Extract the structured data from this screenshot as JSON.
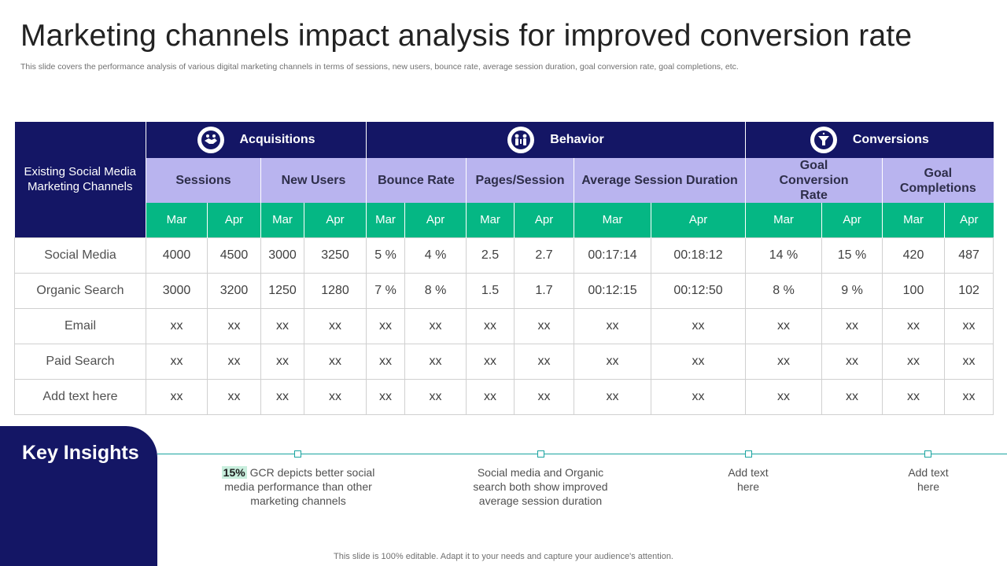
{
  "page": {
    "title": "Marketing channels impact analysis for improved conversion rate",
    "subtitle": "This slide covers the performance analysis of various digital marketing channels in terms of sessions, new users, bounce rate, average session duration, goal conversion rate, goal completions, etc."
  },
  "table": {
    "corner_label": "Existing Social Media Marketing Channels",
    "groups": [
      {
        "label": "Acquisitions",
        "icon": "handshake-icon"
      },
      {
        "label": "Behavior",
        "icon": "people-icon"
      },
      {
        "label": "Conversions",
        "icon": "funnel-icon"
      }
    ],
    "metrics": [
      "Sessions",
      "New Users",
      "Bounce Rate",
      "Pages/Session",
      "Average Session Duration",
      "Goal Conversion Rate",
      "Goal Completions"
    ],
    "months": [
      "Mar",
      "Apr"
    ],
    "rows": [
      {
        "label": "Social Media",
        "cells": [
          "4000",
          "4500",
          "3000",
          "3250",
          "5 %",
          "4 %",
          "2.5",
          "2.7",
          "00:17:14",
          "00:18:12",
          "14 %",
          "15 %",
          "420",
          "487"
        ]
      },
      {
        "label": "Organic Search",
        "cells": [
          "3000",
          "3200",
          "1250",
          "1280",
          "7 %",
          "8 %",
          "1.5",
          "1.7",
          "00:12:15",
          "00:12:50",
          "8 %",
          "9 %",
          "100",
          "102"
        ]
      },
      {
        "label": "Email",
        "cells": [
          "xx",
          "xx",
          "xx",
          "xx",
          "xx",
          "xx",
          "xx",
          "xx",
          "xx",
          "xx",
          "xx",
          "xx",
          "xx",
          "xx"
        ]
      },
      {
        "label": "Paid Search",
        "cells": [
          "xx",
          "xx",
          "xx",
          "xx",
          "xx",
          "xx",
          "xx",
          "xx",
          "xx",
          "xx",
          "xx",
          "xx",
          "xx",
          "xx"
        ]
      },
      {
        "label": "Add text here",
        "cells": [
          "xx",
          "xx",
          "xx",
          "xx",
          "xx",
          "xx",
          "xx",
          "xx",
          "xx",
          "xx",
          "xx",
          "xx",
          "xx",
          "xx"
        ]
      }
    ]
  },
  "insights": {
    "title": "Key Insights",
    "items": [
      {
        "highlight": "15%",
        "text": "GCR depicts better social media performance than other marketing channels"
      },
      {
        "text": "Social media and Organic search both show improved average session duration"
      },
      {
        "text": "Add text here"
      },
      {
        "text": "Add text here"
      }
    ]
  },
  "footer": "This slide is 100% editable. Adapt it to your needs and capture your audience's attention.",
  "colors": {
    "navy": "#141665",
    "lavender": "#b9b4ef",
    "green": "#05b784",
    "teal": "#1aa3a0"
  }
}
